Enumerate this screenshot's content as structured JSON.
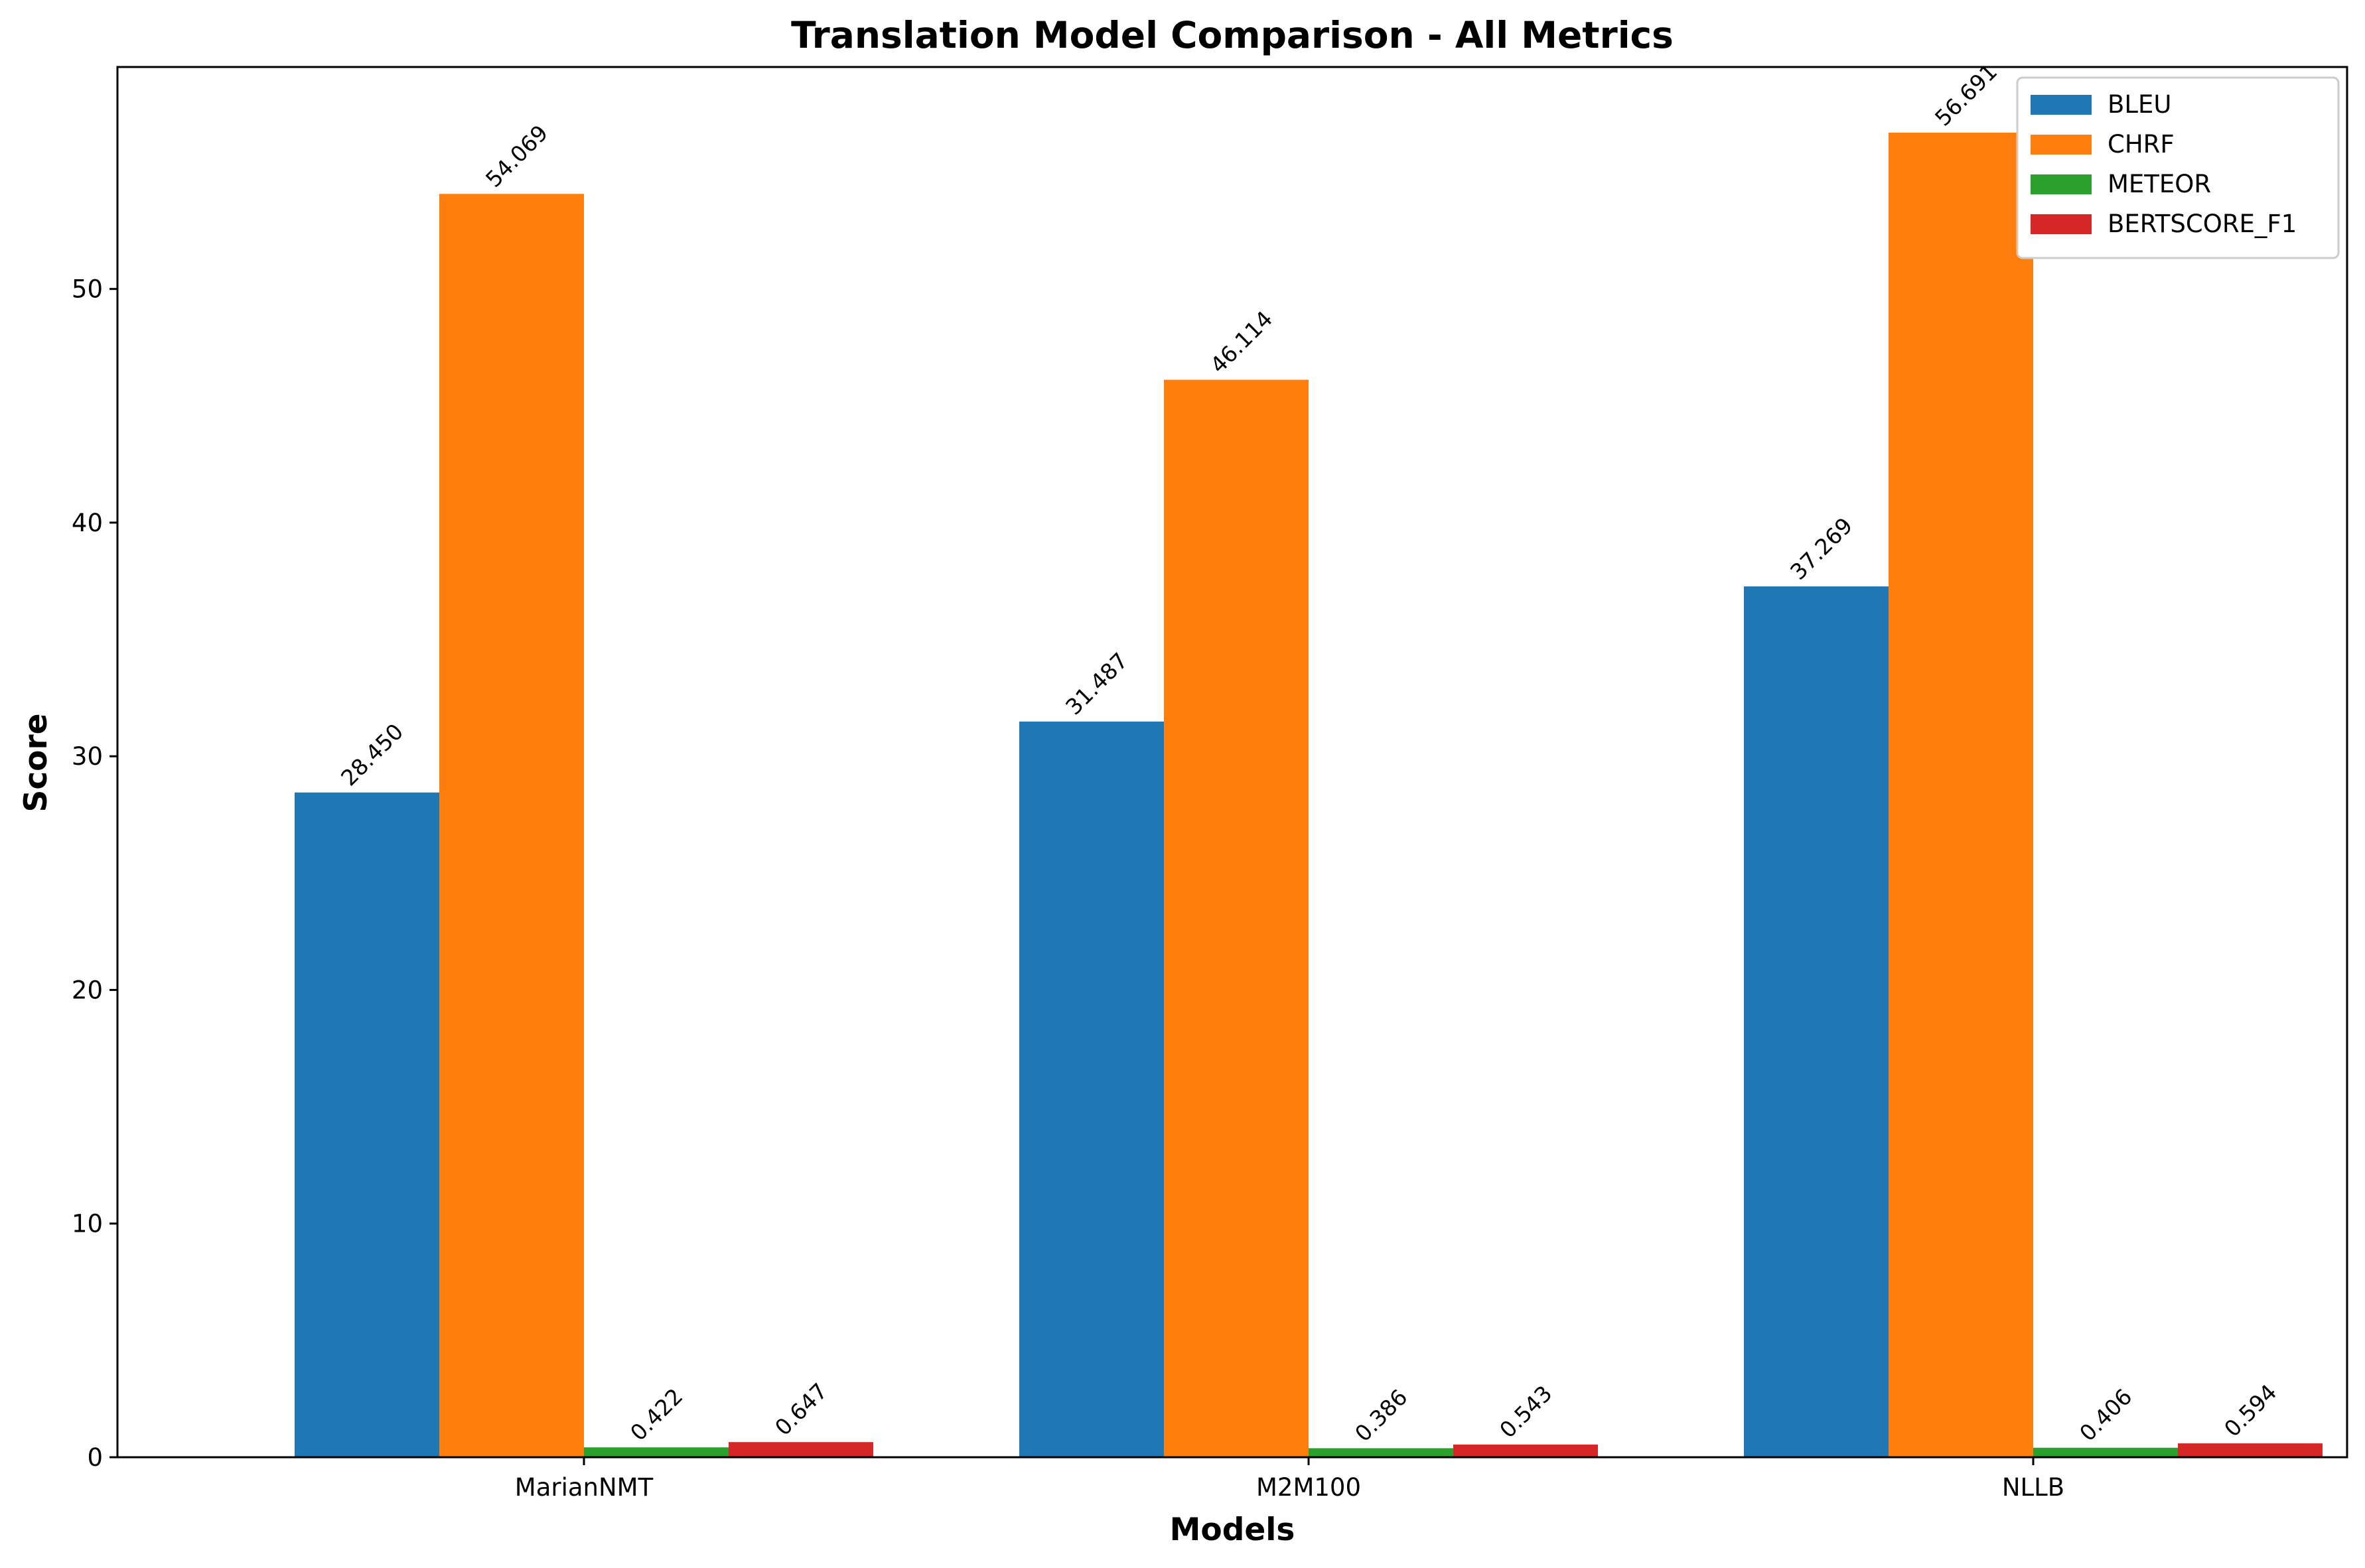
{
  "chart_data": {
    "type": "bar",
    "title": "Translation Model Comparison - All Metrics",
    "xlabel": "Models",
    "ylabel": "Score",
    "categories": [
      "MarianNMT",
      "M2M100",
      "NLLB"
    ],
    "series": [
      {
        "name": "BLEU",
        "color": "#1f77b4",
        "values": [
          28.45,
          31.487,
          37.269
        ],
        "labels": [
          "28.450",
          "31.487",
          "37.269"
        ]
      },
      {
        "name": "CHRF",
        "color": "#ff7f0e",
        "values": [
          54.069,
          46.114,
          56.691
        ],
        "labels": [
          "54.069",
          "46.114",
          "56.691"
        ]
      },
      {
        "name": "METEOR",
        "color": "#2ca02c",
        "values": [
          0.422,
          0.386,
          0.406
        ],
        "labels": [
          "0.422",
          "0.386",
          "0.406"
        ]
      },
      {
        "name": "BERTSCORE_F1",
        "color": "#d62728",
        "values": [
          0.647,
          0.543,
          0.594
        ],
        "labels": [
          "0.647",
          "0.543",
          "0.594"
        ]
      }
    ],
    "ylim": [
      0,
      59.5
    ],
    "yticks": [
      0,
      10,
      20,
      30,
      40,
      50
    ],
    "grid": false,
    "legend_position": "top-right"
  }
}
